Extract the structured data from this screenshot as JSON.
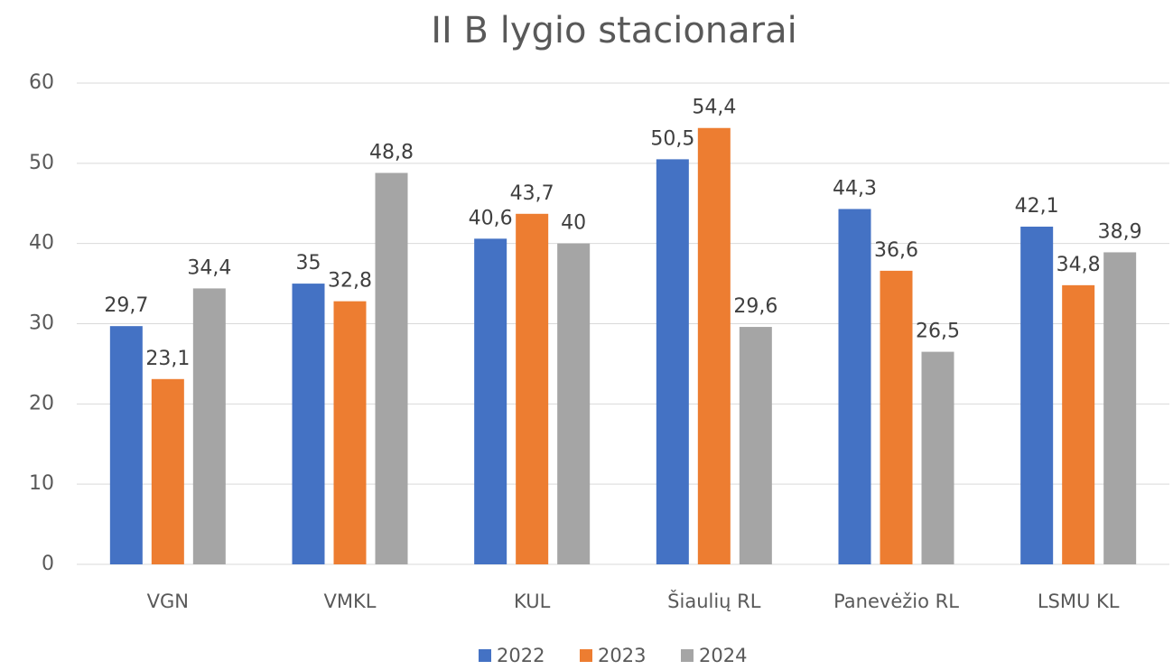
{
  "chart_data": {
    "type": "bar",
    "title": "II B lygio stacionarai",
    "categories": [
      "VGN",
      "VMKL",
      "KUL",
      "Šiaulių RL",
      "Panevėžio RL",
      "LSMU KL"
    ],
    "series": [
      {
        "name": "2022",
        "color": "#4472c4",
        "values": [
          29.7,
          35,
          40.6,
          50.5,
          44.3,
          42.1
        ],
        "value_labels": [
          "29,7",
          "35",
          "40,6",
          "50,5",
          "44,3",
          "42,1"
        ]
      },
      {
        "name": "2023",
        "color": "#ed7d31",
        "values": [
          23.1,
          32.8,
          43.7,
          54.4,
          36.6,
          34.8
        ],
        "value_labels": [
          "23,1",
          "32,8",
          "43,7",
          "54,4",
          "36,6",
          "34,8"
        ]
      },
      {
        "name": "2024",
        "color": "#a5a5a5",
        "values": [
          34.4,
          48.8,
          40,
          29.6,
          26.5,
          38.9
        ],
        "value_labels": [
          "34,4",
          "48,8",
          "40",
          "29,6",
          "26,5",
          "38,9"
        ]
      }
    ],
    "ylim": [
      0,
      60
    ],
    "yticks": [
      0,
      10,
      20,
      30,
      40,
      50,
      60
    ],
    "grid": true,
    "legend": "bottom"
  }
}
